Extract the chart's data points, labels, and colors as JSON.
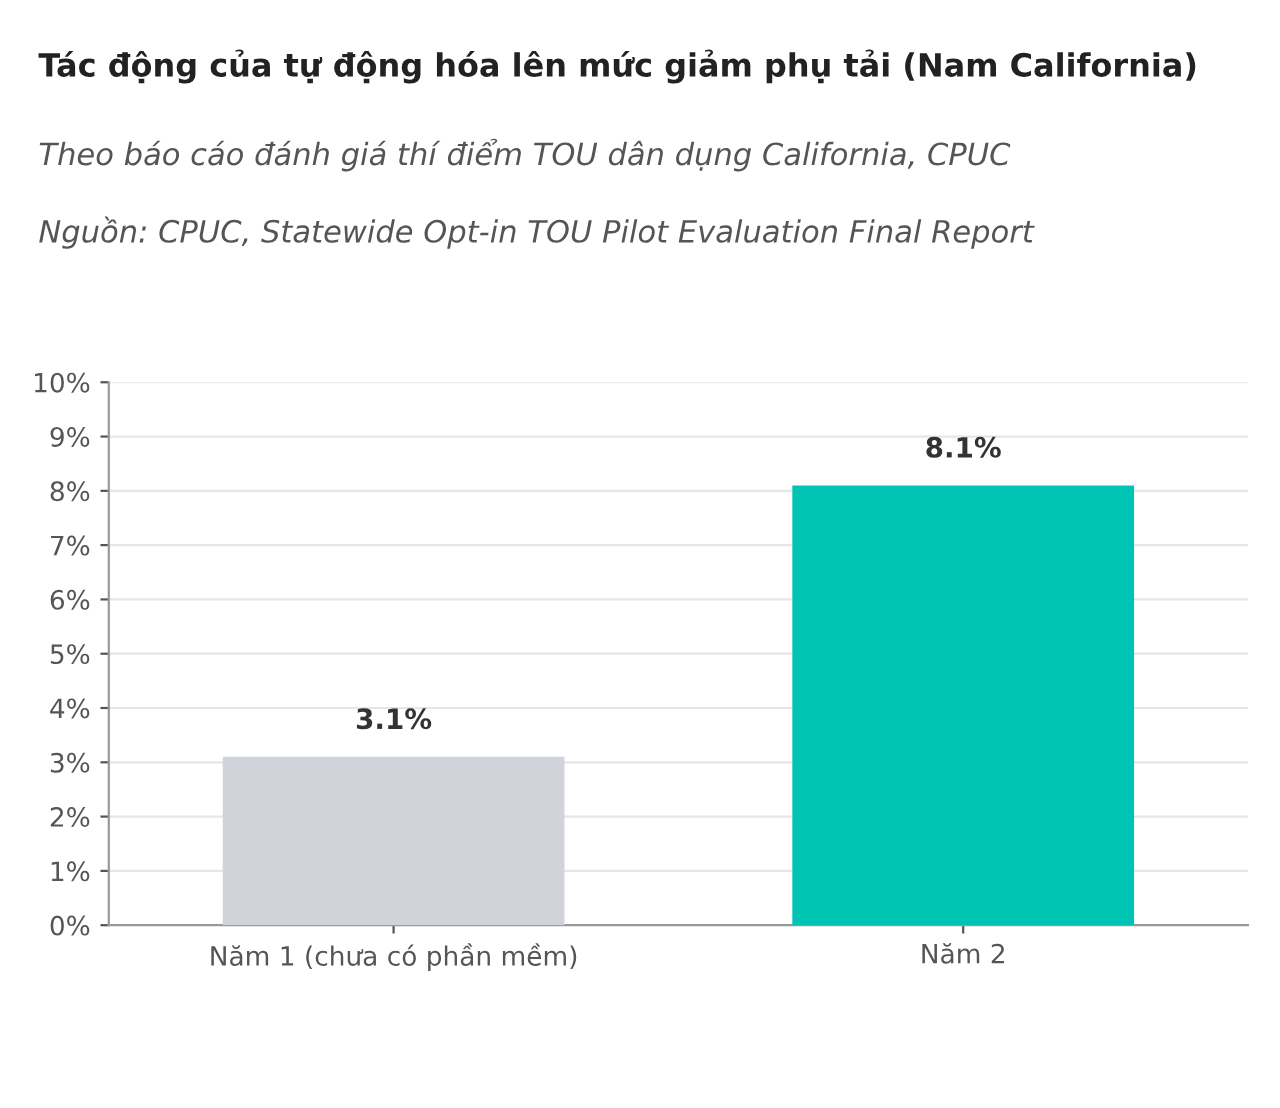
{
  "chart_data": {
    "type": "bar",
    "title": "Tác động của tự động hóa lên mức giảm phụ tải (Nam California)",
    "subtitle": "Theo báo cáo đánh giá thí điểm TOU dân dụng California, CPUC",
    "annotations": [
      "Nguồn: CPUC, Statewide Opt-in TOU Pilot Evaluation Final Report"
    ],
    "categories": [
      "Năm 1 (chưa có phần mềm)",
      "Năm 2"
    ],
    "values": [
      3.1,
      8.1
    ],
    "colors": [
      "#d1d3db",
      "#00c4b3"
    ],
    "value_labels": [
      "3.1%",
      "8.1%"
    ],
    "ylim": [
      0,
      10
    ],
    "yticks": [
      {
        "value": 0,
        "label": "0%"
      },
      {
        "value": 1,
        "label": "1%"
      },
      {
        "value": 2,
        "label": "2%"
      },
      {
        "value": 3,
        "label": "3%"
      },
      {
        "value": 4,
        "label": "4%"
      },
      {
        "value": 5,
        "label": "5%"
      },
      {
        "value": 6,
        "label": "6%"
      },
      {
        "value": 7,
        "label": "7%"
      },
      {
        "value": 8,
        "label": "8%"
      },
      {
        "value": 9,
        "label": "9%"
      },
      {
        "value": 10,
        "label": "10%"
      }
    ],
    "grid": "y"
  }
}
